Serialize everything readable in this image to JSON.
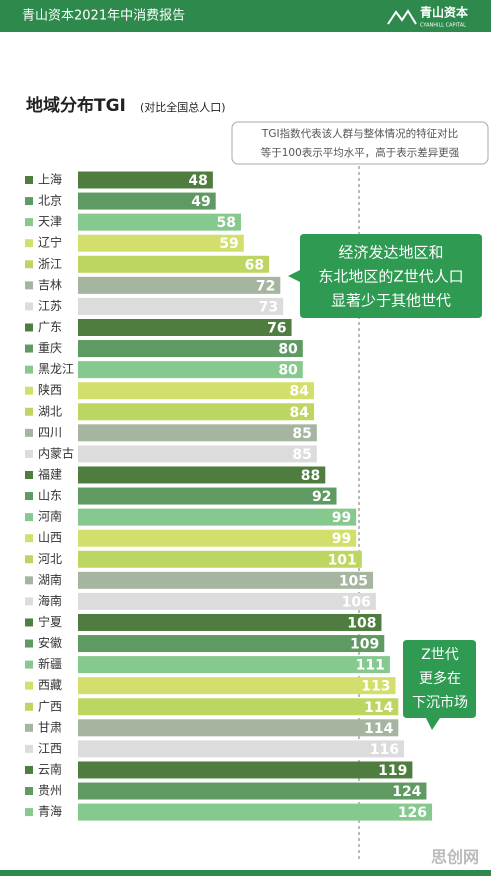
{
  "header": {
    "report": "青山资本2021年中消费报告",
    "logo": "青山资本",
    "logo_sub": "CYANHILL CAPITAL"
  },
  "chart_data": {
    "type": "bar",
    "orientation": "horizontal",
    "title": "地域分布TGI",
    "subtitle": "(对比全国总人口)",
    "categories": [
      "上海",
      "北京",
      "天津",
      "辽宁",
      "浙江",
      "吉林",
      "江苏",
      "广东",
      "重庆",
      "黑龙江",
      "陕西",
      "湖北",
      "四川",
      "内蒙古",
      "福建",
      "山东",
      "河南",
      "山西",
      "河北",
      "湖南",
      "海南",
      "宁夏",
      "安徽",
      "新疆",
      "西藏",
      "广西",
      "甘肃",
      "江西",
      "云南",
      "贵州",
      "青海"
    ],
    "values": [
      48,
      49,
      58,
      59,
      68,
      72,
      73,
      76,
      80,
      80,
      84,
      84,
      85,
      85,
      88,
      92,
      99,
      99,
      101,
      105,
      106,
      108,
      109,
      111,
      113,
      114,
      114,
      116,
      119,
      124,
      126
    ],
    "colors": [
      "#4e7d3f",
      "#5f9a63",
      "#86c98f",
      "#d2df6c",
      "#bdd661",
      "#a5b5a0",
      "#dcdcdc"
    ],
    "reference_line": 100,
    "note": [
      "TGI指数代表该人群与整体情况的特征对比",
      "等于100表示平均水平，高于表示差异更强"
    ],
    "callouts": [
      [
        "经济发达地区和",
        "东北地区的Z世代人口",
        "显著少于其他世代"
      ],
      [
        "Z世代",
        "更多在",
        "下沉市场"
      ]
    ]
  },
  "watermark": "思创网"
}
